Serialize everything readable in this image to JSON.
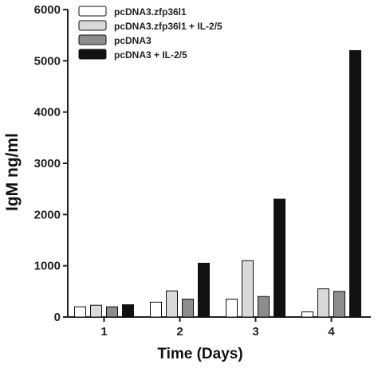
{
  "chart_data": {
    "type": "bar",
    "xlabel": "Time (Days)",
    "ylabel": "IgM ng/ml",
    "ylim": [
      0,
      6000
    ],
    "yticks": [
      0,
      1000,
      2000,
      3000,
      4000,
      5000,
      6000
    ],
    "categories": [
      "1",
      "2",
      "3",
      "4"
    ],
    "legend_position": "top-left",
    "grid": false,
    "series": [
      {
        "name": "pcDNA3.zfp36l1",
        "color": "#ffffff",
        "values": [
          200,
          290,
          350,
          100
        ]
      },
      {
        "name": "pcDNA3.zfp36l1 + IL-2/5",
        "color": "#d9d9d9",
        "values": [
          230,
          510,
          1100,
          550
        ]
      },
      {
        "name": "pcDNA3",
        "color": "#8c8c8c",
        "values": [
          200,
          350,
          400,
          500
        ]
      },
      {
        "name": "pcDNA3 + IL-2/5",
        "color": "#111111",
        "values": [
          240,
          1050,
          2300,
          5200
        ]
      }
    ]
  }
}
